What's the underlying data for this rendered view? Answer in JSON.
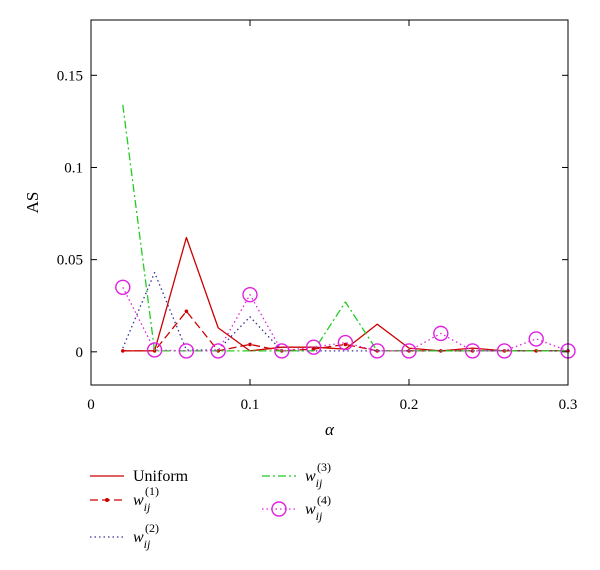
{
  "chart_data": {
    "type": "line",
    "xlabel": "α",
    "ylabel": "AS",
    "xlim": [
      0,
      0.3
    ],
    "ylim": [
      -0.018,
      0.18
    ],
    "xticks": [
      {
        "value": 0,
        "label": "0"
      },
      {
        "value": 0.1,
        "label": "0.1"
      },
      {
        "value": 0.2,
        "label": "0.2"
      },
      {
        "value": 0.3,
        "label": "0.3"
      }
    ],
    "yticks": [
      {
        "value": 0,
        "label": "0"
      },
      {
        "value": 0.05,
        "label": "0.05"
      },
      {
        "value": 0.1,
        "label": "0.1"
      },
      {
        "value": 0.15,
        "label": "0.15"
      }
    ],
    "grid": false,
    "legend_position": "below",
    "series": [
      {
        "name": "Uniform",
        "base": "Uniform",
        "sub": "",
        "sup": "",
        "color": "#cc0000",
        "dash": "solid",
        "marker": "none",
        "x": [
          0.02,
          0.04,
          0.06,
          0.08,
          0.1,
          0.12,
          0.14,
          0.16,
          0.18,
          0.2,
          0.22,
          0.24,
          0.26,
          0.28,
          0.3
        ],
        "y": [
          0.0005,
          0.0005,
          0.062,
          0.013,
          0.0005,
          0.0025,
          0.0025,
          0.0015,
          0.015,
          0.002,
          0.0005,
          0.002,
          0.0005,
          0.0005,
          0.0005
        ]
      },
      {
        "name": "w_ij^(1)",
        "base": "w",
        "sub": "ij",
        "sup": "(1)",
        "color": "#cc0000",
        "dash": "dashed",
        "marker": "dot",
        "x": [
          0.02,
          0.04,
          0.06,
          0.08,
          0.1,
          0.12,
          0.14,
          0.16,
          0.18,
          0.2,
          0.22,
          0.24,
          0.26,
          0.28,
          0.3
        ],
        "y": [
          0.0005,
          0.0005,
          0.022,
          0.0005,
          0.004,
          0.0005,
          0.0015,
          0.004,
          0.0005,
          0.0005,
          0.0005,
          0.0005,
          0.0005,
          0.0005,
          0.0005
        ]
      },
      {
        "name": "w_ij^(2)",
        "base": "w",
        "sub": "ij",
        "sup": "(2)",
        "color": "#333399",
        "dash": "dotted",
        "marker": "none",
        "x": [
          0.02,
          0.04,
          0.06,
          0.08,
          0.1,
          0.12,
          0.14,
          0.16,
          0.18,
          0.2,
          0.22,
          0.24,
          0.26,
          0.28,
          0.3
        ],
        "y": [
          0.002,
          0.043,
          0.001,
          0.001,
          0.019,
          0.0005,
          0.0005,
          0.0005,
          0.0005,
          0.0005,
          0.0005,
          0.0005,
          0.0005,
          0.0005,
          0.0005
        ]
      },
      {
        "name": "w_ij^(3)",
        "base": "w",
        "sub": "ij",
        "sup": "(3)",
        "color": "#22cc22",
        "dash": "dashdot",
        "marker": "none",
        "x": [
          0.02,
          0.04,
          0.06,
          0.08,
          0.1,
          0.12,
          0.14,
          0.16,
          0.18,
          0.2,
          0.22,
          0.24,
          0.26,
          0.28,
          0.3
        ],
        "y": [
          0.134,
          0.0005,
          0.0005,
          0.0005,
          0.0005,
          0.0005,
          0.0005,
          0.027,
          0.0005,
          0.0005,
          0.0005,
          0.0005,
          0.0005,
          0.0005,
          0.0005
        ]
      },
      {
        "name": "w_ij^(4)",
        "base": "w",
        "sub": "ij",
        "sup": "(4)",
        "color": "#e020e0",
        "dash": "dotted",
        "marker": "circle",
        "x": [
          0.02,
          0.04,
          0.06,
          0.08,
          0.1,
          0.12,
          0.14,
          0.16,
          0.18,
          0.2,
          0.22,
          0.24,
          0.26,
          0.28,
          0.3
        ],
        "y": [
          0.035,
          0.001,
          0.0005,
          0.0005,
          0.031,
          0.0005,
          0.0025,
          0.005,
          0.0005,
          0.0005,
          0.01,
          0.0005,
          0.0005,
          0.007,
          0.0005
        ]
      }
    ]
  }
}
